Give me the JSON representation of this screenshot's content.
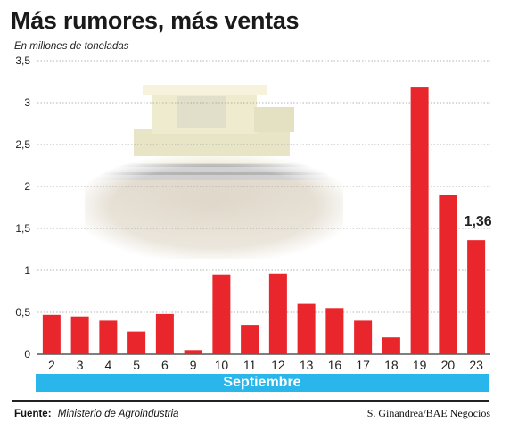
{
  "title": "Más rumores, más ventas",
  "unit_label": "En millones de toneladas",
  "month_label": "Septiembre",
  "source_label": "Fuente:",
  "source_value": "Ministerio de Agroindustria",
  "credit": "S. Ginandrea/BAE Negocios",
  "colors": {
    "bar": "#e8262b",
    "month_band": "#29b6ea",
    "grid": "#9a9a9a"
  },
  "chart_data": {
    "type": "bar",
    "categories": [
      "2",
      "3",
      "4",
      "5",
      "6",
      "9",
      "10",
      "11",
      "12",
      "13",
      "16",
      "17",
      "18",
      "19",
      "20",
      "23"
    ],
    "values": [
      0.47,
      0.45,
      0.4,
      0.27,
      0.48,
      0.05,
      0.95,
      0.35,
      0.96,
      0.6,
      0.55,
      0.4,
      0.2,
      3.18,
      1.9,
      1.36
    ],
    "data_labels": [
      {
        "category": "23",
        "text": "1,36"
      }
    ],
    "yticks": [
      "0",
      "0,5",
      "1",
      "1,5",
      "2",
      "2,5",
      "3",
      "3,5"
    ],
    "ylim": [
      0,
      3.5
    ],
    "grid": true,
    "background_image": "combine-harvester-photo"
  }
}
